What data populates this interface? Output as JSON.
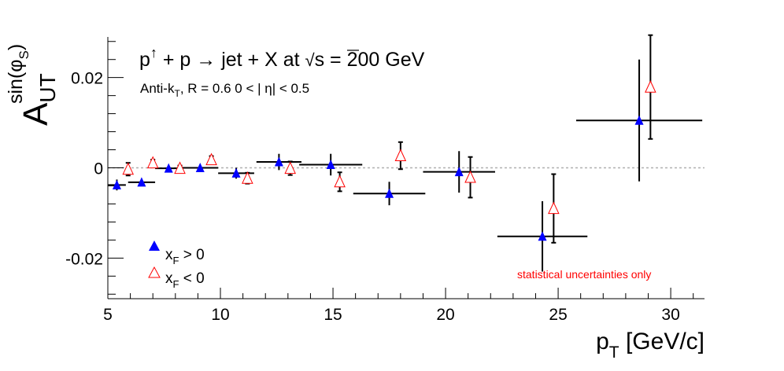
{
  "chart_data": {
    "type": "scatter",
    "title": "",
    "xlabel_main": "p",
    "xlabel_sub": "T",
    "xlabel_unit": " [GeV/c]",
    "ylabel_main": "A",
    "ylabel_sub": "UT",
    "ylabel_sup": "sin(φ",
    "ylabel_sup_sub": "S",
    "ylabel_sup_close": ")",
    "xlim": [
      5,
      31.5
    ],
    "ylim": [
      -0.029,
      0.029
    ],
    "x_ticks": [
      5,
      10,
      15,
      20,
      25,
      30
    ],
    "x_tick_labels": [
      "5",
      "10",
      "15",
      "20",
      "25",
      "30"
    ],
    "y_ticks": [
      -0.02,
      0,
      0.02
    ],
    "y_tick_labels": [
      "-0.02",
      "0",
      "0.02"
    ],
    "zero_line": true,
    "grid": false,
    "annotations": {
      "reaction_a": "p",
      "reaction_sup": "↑",
      "reaction_b": " + p → jet + X at ",
      "sqrt_sign": "√",
      "reaction_s": "s",
      "reaction_c": " = 200 GeV",
      "algo_a": "Anti-k",
      "algo_sub": "T",
      "algo_b": ", R = 0.6   0 < | η| < 0.5",
      "stat_note": "statistical uncertainties only"
    },
    "legend": {
      "placement": "bottom-left",
      "entries": [
        {
          "main": "x",
          "sub": "F",
          "rest": " > 0"
        },
        {
          "main": "x",
          "sub": "F",
          "rest": " < 0"
        }
      ]
    },
    "series": [
      {
        "marker": "filled-triangle",
        "color": "#0000ff",
        "points": [
          {
            "x": 5.4,
            "y": -0.0038,
            "xerr": 0.4,
            "yerr": 0.0012
          },
          {
            "x": 6.5,
            "y": -0.0032,
            "xerr": 0.6,
            "yerr": 0.0007
          },
          {
            "x": 7.7,
            "y": -0.0001,
            "xerr": 0.6,
            "yerr": 0.0006
          },
          {
            "x": 9.1,
            "y": 0.0,
            "xerr": 0.8,
            "yerr": 0.0007
          },
          {
            "x": 10.7,
            "y": -0.0012,
            "xerr": 0.8,
            "yerr": 0.0012
          },
          {
            "x": 12.6,
            "y": 0.0013,
            "xerr": 1.0,
            "yerr": 0.0018
          },
          {
            "x": 14.9,
            "y": 0.0007,
            "xerr": 1.4,
            "yerr": 0.0024
          },
          {
            "x": 17.5,
            "y": -0.0057,
            "xerr": 1.6,
            "yerr": 0.0026
          },
          {
            "x": 20.6,
            "y": -0.0009,
            "xerr": 1.6,
            "yerr": 0.0046
          },
          {
            "x": 24.3,
            "y": -0.0152,
            "xerr": 2.0,
            "yerr": 0.0078
          },
          {
            "x": 28.6,
            "y": 0.0105,
            "xerr": 2.8,
            "yerr": 0.0135
          }
        ]
      },
      {
        "marker": "open-triangle",
        "color": "#ff0000",
        "points": [
          {
            "x": 5.9,
            "y": -0.0003,
            "yerr": 0.0014
          },
          {
            "x": 7.0,
            "y": 0.0011,
            "yerr": 0.0007
          },
          {
            "x": 8.2,
            "y": -0.0001,
            "yerr": 0.0006
          },
          {
            "x": 9.6,
            "y": 0.0018,
            "yerr": 0.0008
          },
          {
            "x": 11.2,
            "y": -0.0023,
            "yerr": 0.0012
          },
          {
            "x": 13.1,
            "y": -0.0001,
            "yerr": 0.0015
          },
          {
            "x": 15.3,
            "y": -0.0031,
            "yerr": 0.0021
          },
          {
            "x": 18.0,
            "y": 0.0027,
            "yerr": 0.003
          },
          {
            "x": 21.1,
            "y": -0.0021,
            "yerr": 0.0045
          },
          {
            "x": 24.8,
            "y": -0.009,
            "yerr": 0.0076
          },
          {
            "x": 29.1,
            "y": 0.0179,
            "yerr": 0.0115
          }
        ]
      }
    ]
  }
}
